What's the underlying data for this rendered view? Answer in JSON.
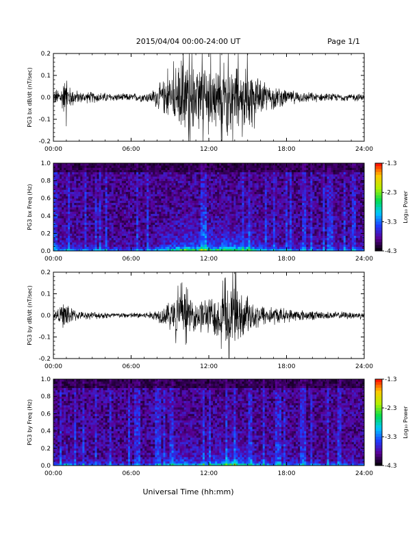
{
  "header": {
    "date_range": "2015/04/04  00:00-24:00 UT",
    "page": "Page 1/1"
  },
  "footer": {
    "xlabel": "Universal Time (hh:mm)"
  },
  "colorbar": {
    "label": "Log₁₀ Power",
    "ticks": [
      "-1.3",
      "-2.3",
      "-3.3",
      "-4.3"
    ],
    "range": [
      -4.3,
      -1.3
    ],
    "colors": [
      "#000000",
      "#5a0096",
      "#1e3cff",
      "#00c8ff",
      "#00dc50",
      "#b4f000",
      "#ffc800",
      "#ff0000"
    ]
  },
  "chart_data": [
    {
      "type": "line",
      "ylabel": "PG3 bx dB/dt (nT/sec)",
      "xticks": [
        "00:00",
        "06:00",
        "12:00",
        "18:00",
        "24:00"
      ],
      "yticks": [
        "0.2",
        "0.1",
        "0.0",
        "-0.1",
        "-0.2"
      ],
      "xlim": [
        0,
        24
      ],
      "ylim": [
        -0.2,
        0.2
      ],
      "grid": false,
      "series": [
        {
          "x": [
            0,
            0.5,
            1.0,
            1.2,
            2,
            3,
            4,
            5,
            6,
            7,
            7.5,
            8,
            8.5,
            9,
            9.5,
            10,
            10.5,
            11,
            11.5,
            12,
            12.5,
            13,
            13.5,
            14,
            14.5,
            15,
            15.5,
            16,
            17,
            18,
            19,
            20,
            21,
            22,
            23,
            24
          ],
          "values": [
            0.04,
            0.05,
            0.11,
            0.06,
            0.03,
            0.03,
            0.025,
            0.02,
            0.02,
            0.025,
            0.03,
            0.06,
            0.09,
            0.12,
            0.15,
            0.2,
            0.18,
            0.15,
            0.2,
            0.2,
            0.15,
            0.18,
            0.2,
            0.2,
            0.14,
            0.2,
            0.12,
            0.09,
            0.06,
            0.04,
            0.03,
            0.025,
            0.02,
            0.02,
            0.02,
            0.02
          ]
        }
      ]
    },
    {
      "type": "heatmap",
      "ylabel": "PG3 bx Freq (Hz)",
      "xticks": [
        "00:00",
        "06:00",
        "12:00",
        "18:00",
        "24:00"
      ],
      "yticks": [
        "1.0",
        "0.8",
        "0.6",
        "0.4",
        "0.2",
        "0.0"
      ],
      "xlim": [
        0,
        24
      ],
      "ylim": [
        0,
        1
      ],
      "zlim": [
        -4.3,
        -1.3
      ]
    },
    {
      "type": "line",
      "ylabel": "PG3 by dB/dt (nT/sec)",
      "xticks": [
        "00:00",
        "06:00",
        "12:00",
        "18:00",
        "24:00"
      ],
      "yticks": [
        "0.2",
        "0.1",
        "0.0",
        "-0.1",
        "-0.2"
      ],
      "xlim": [
        0,
        24
      ],
      "ylim": [
        -0.2,
        0.2
      ],
      "grid": false,
      "series": [
        {
          "x": [
            0,
            0.5,
            1.0,
            1.2,
            2,
            3,
            4,
            5,
            6,
            7,
            7.5,
            8,
            8.5,
            9,
            9.5,
            10,
            10.5,
            11,
            11.5,
            12,
            12.5,
            13,
            13.5,
            14,
            14.5,
            15,
            15.5,
            16,
            17,
            18,
            19,
            20,
            21,
            22,
            23,
            24
          ],
          "values": [
            0.03,
            0.04,
            0.09,
            0.05,
            0.02,
            0.02,
            0.018,
            0.015,
            0.015,
            0.018,
            0.02,
            0.035,
            0.05,
            0.08,
            0.11,
            0.13,
            0.09,
            0.08,
            0.1,
            0.09,
            0.12,
            0.13,
            0.16,
            0.2,
            0.12,
            0.1,
            0.08,
            0.06,
            0.05,
            0.035,
            0.03,
            0.025,
            0.02,
            0.02,
            0.02,
            0.02
          ]
        }
      ]
    },
    {
      "type": "heatmap",
      "ylabel": "PG3 by Freq (Hz)",
      "xticks": [
        "00:00",
        "06:00",
        "12:00",
        "18:00",
        "24:00"
      ],
      "yticks": [
        "1.0",
        "0.8",
        "0.6",
        "0.4",
        "0.2",
        "0.0"
      ],
      "xlim": [
        0,
        24
      ],
      "ylim": [
        0,
        1
      ],
      "zlim": [
        -4.3,
        -1.3
      ]
    }
  ]
}
